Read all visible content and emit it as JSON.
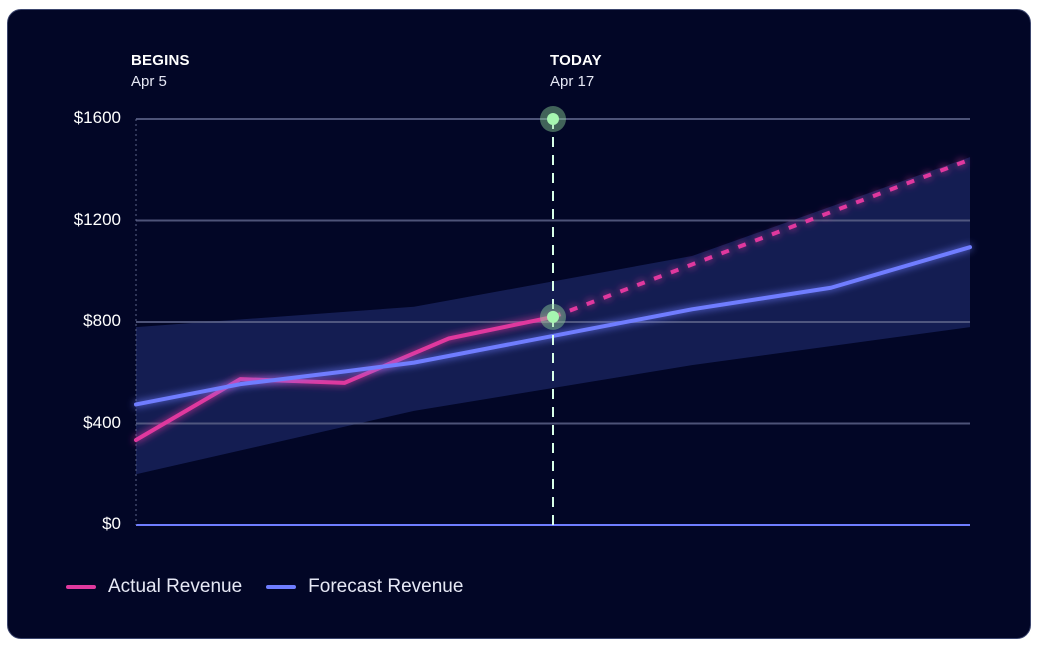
{
  "chart_data": {
    "type": "line",
    "ylim": [
      0,
      1600
    ],
    "y_ticks": [
      "$1600",
      "$1200",
      "$800",
      "$400",
      "$0"
    ],
    "y_tick_values": [
      1600,
      1200,
      800,
      400,
      0
    ],
    "x_range": [
      0,
      24
    ],
    "markers": [
      {
        "title": "BEGINS",
        "date": "Apr 5",
        "x": 0
      },
      {
        "title": "TODAY",
        "date": "Apr 17",
        "x": 12
      }
    ],
    "series": [
      {
        "name": "Actual Revenue",
        "color": "#e0399e",
        "x": [
          0,
          3,
          6,
          9,
          12
        ],
        "values": [
          335,
          575,
          560,
          735,
          820
        ]
      },
      {
        "name": "Actual Revenue projection",
        "color": "#e0399e",
        "style": "dashed",
        "x": [
          12,
          24
        ],
        "values": [
          820,
          1440
        ]
      },
      {
        "name": "Forecast Revenue",
        "color": "#6f7dff",
        "x": [
          0,
          3,
          6,
          8,
          12,
          16,
          20,
          24
        ],
        "values": [
          475,
          555,
          605,
          640,
          745,
          850,
          935,
          1095
        ]
      }
    ],
    "forecast_band": {
      "x": [
        0,
        8,
        12,
        16,
        24
      ],
      "upper": [
        780,
        860,
        960,
        1060,
        1450
      ],
      "lower": [
        200,
        450,
        540,
        630,
        780
      ]
    },
    "today_points": [
      1600,
      820
    ]
  }
}
